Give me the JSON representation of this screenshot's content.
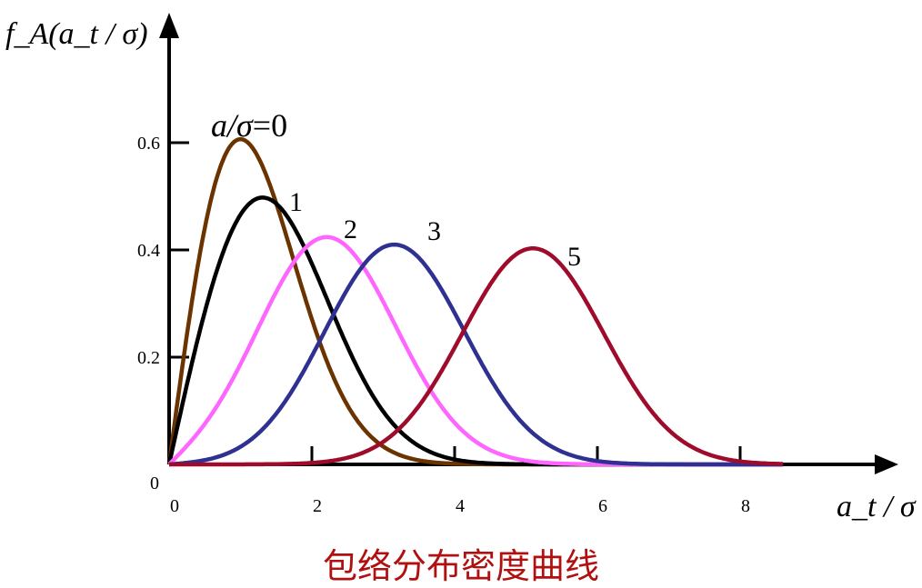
{
  "caption": "包络分布密度曲线",
  "chart_data": {
    "type": "line",
    "title": "",
    "xlabel": "a_t / σ",
    "ylabel": "f_A(a_t / σ)",
    "xlim": [
      0,
      10
    ],
    "ylim": [
      0,
      0.68
    ],
    "x_ticks": [
      0,
      2,
      4,
      6,
      8
    ],
    "y_ticks": [
      0.2,
      0.4,
      0.6
    ],
    "origin_label": "0",
    "grid": false,
    "distribution": "rician",
    "series": [
      {
        "name": "a/σ=0",
        "param": 0,
        "color": "#6b3300"
      },
      {
        "name": "1",
        "param": 1,
        "color": "#000000"
      },
      {
        "name": "2",
        "param": 2,
        "color": "#ff66ff"
      },
      {
        "name": "3",
        "param": 3,
        "color": "#2e3192"
      },
      {
        "name": "5",
        "param": 5,
        "color": "#9e0b2b"
      }
    ]
  }
}
